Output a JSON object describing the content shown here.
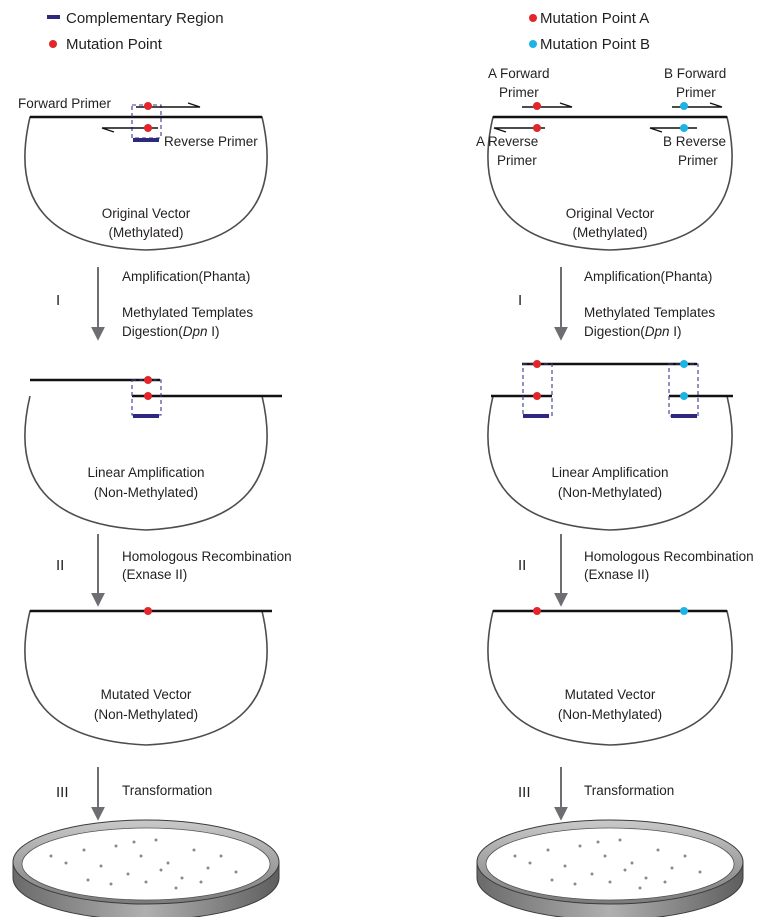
{
  "colors": {
    "mutation_a": "#e3262b",
    "mutation_b": "#1eb3e6",
    "complementary": "#2b2a7d",
    "vector_outline": "#4d4d4f",
    "arrow": "#6d6e71"
  },
  "left": {
    "legend": {
      "complementary_region": "Complementary Region",
      "mutation_point": "Mutation Point"
    },
    "forward_primer": "Forward Primer",
    "reverse_primer": "Reverse Primer",
    "original_vector": [
      "Original Vector",
      "(Methylated)"
    ],
    "step1": {
      "roman": "I",
      "line1": "Amplification(Phanta)",
      "line2": "Methylated Templates",
      "line3_pre": "Digestion(",
      "line3_em": "Dpn",
      "line3_post": " I)"
    },
    "linear_amplification": [
      "Linear Amplification",
      "(Non-Methylated)"
    ],
    "step2": {
      "roman": "II",
      "line1": "Homologous Recombination",
      "line2": "(Exnase II)"
    },
    "mutated_vector": [
      "Mutated Vector",
      "(Non-Methylated)"
    ],
    "step3": {
      "roman": "III",
      "line1": "Transformation"
    }
  },
  "right": {
    "legend": {
      "mutation_a": "Mutation Point A",
      "mutation_b": "Mutation Point B"
    },
    "a_forward_primer": [
      "A Forward",
      "Primer"
    ],
    "b_forward_primer": [
      "B Forward",
      "Primer"
    ],
    "a_reverse_primer": [
      "A Reverse",
      "Primer"
    ],
    "b_reverse_primer": [
      "B Reverse",
      "Primer"
    ],
    "original_vector": [
      "Original Vector",
      "(Methylated)"
    ],
    "step1": {
      "roman": "I",
      "line1": "Amplification(Phanta)",
      "line2": "Methylated Templates",
      "line3_pre": "Digestion(",
      "line3_em": "Dpn",
      "line3_post": " I)"
    },
    "linear_amplification": [
      "Linear Amplification",
      "(Non-Methylated)"
    ],
    "step2": {
      "roman": "II",
      "line1": "Homologous Recombination",
      "line2": "(Exnase II)"
    },
    "mutated_vector": [
      "Mutated Vector",
      "(Non-Methylated)"
    ],
    "step3": {
      "roman": "III",
      "line1": "Transformation"
    }
  }
}
